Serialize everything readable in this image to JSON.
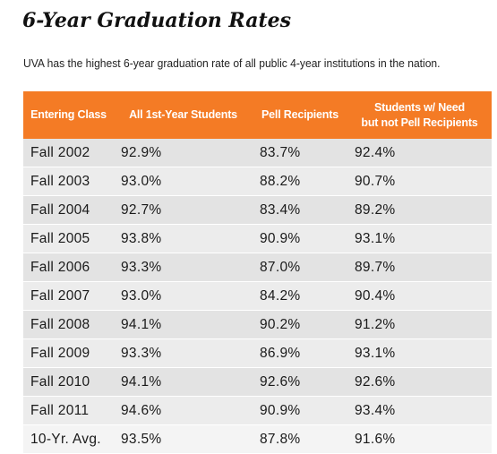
{
  "title": "6-Year Graduation Rates",
  "subtitle": "UVA has the highest 6-year graduation rate of all public 4-year institutions in the nation.",
  "chart_data": {
    "type": "table",
    "columns": [
      "Entering Class",
      "All 1st-Year Students",
      "Pell Recipients",
      "Students w/ Need but not Pell Recipients"
    ],
    "header_lines": [
      [
        "Entering Class"
      ],
      [
        "All 1st-Year Students"
      ],
      [
        "Pell Recipients"
      ],
      [
        "Students w/ Need",
        "but not Pell Recipients"
      ]
    ],
    "rows": [
      [
        "Fall 2002",
        "92.9%",
        "83.7%",
        "92.4%"
      ],
      [
        "Fall 2003",
        "93.0%",
        "88.2%",
        "90.7%"
      ],
      [
        "Fall 2004",
        "92.7%",
        "83.4%",
        "89.2%"
      ],
      [
        "Fall 2005",
        "93.8%",
        "90.9%",
        "93.1%"
      ],
      [
        "Fall 2006",
        "93.3%",
        "87.0%",
        "89.7%"
      ],
      [
        "Fall 2007",
        "93.0%",
        "84.2%",
        "90.4%"
      ],
      [
        "Fall 2008",
        "94.1%",
        "90.2%",
        "91.2%"
      ],
      [
        "Fall 2009",
        "93.3%",
        "86.9%",
        "93.1%"
      ],
      [
        "Fall 2010",
        "94.1%",
        "92.6%",
        "92.6%"
      ],
      [
        "Fall 2011",
        "94.6%",
        "90.9%",
        "93.4%"
      ],
      [
        "10-Yr. Avg.",
        "93.5%",
        "87.8%",
        "91.6%"
      ]
    ]
  },
  "colors": {
    "header_background": "#f47b25",
    "header_text": "#ffffff",
    "row_background": "#e3e3e3",
    "row_alt_background": "#ececec"
  }
}
